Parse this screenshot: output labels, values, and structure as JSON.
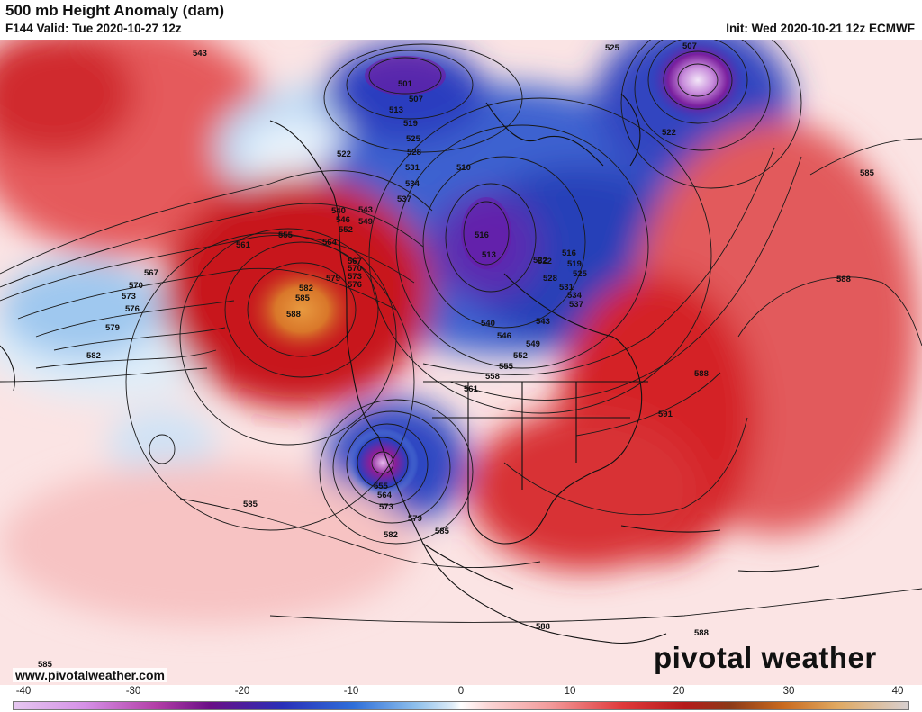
{
  "header": {
    "title": "500 mb Height Anomaly (dam)",
    "valid": "F144 Valid: Tue 2020-10-27 12z",
    "init": "Init: Wed 2020-10-21 12z ECMWF"
  },
  "footer": {
    "website": "www.pivotalweather.com",
    "brand": "pivotal weather"
  },
  "colorbar": {
    "ticks": [
      "-40",
      "-30",
      "-20",
      "-10",
      "0",
      "10",
      "20",
      "30",
      "40"
    ]
  },
  "contour_labels": [
    "543",
    "501",
    "507",
    "513",
    "519",
    "525",
    "525",
    "507",
    "522",
    "522",
    "522",
    "528",
    "531",
    "534",
    "537",
    "540",
    "543",
    "546",
    "549",
    "552",
    "555",
    "561",
    "564",
    "567",
    "570",
    "573",
    "576",
    "579",
    "582",
    "585",
    "588",
    "510",
    "516",
    "513",
    "516",
    "519",
    "522",
    "525",
    "528",
    "531",
    "534",
    "537",
    "540",
    "543",
    "546",
    "549",
    "552",
    "555",
    "558",
    "561",
    "567",
    "570",
    "573",
    "576",
    "579",
    "582",
    "555",
    "564",
    "573",
    "579",
    "582",
    "585",
    "585",
    "588",
    "588",
    "591",
    "588",
    "588",
    "585",
    "585"
  ],
  "colors": {
    "positive_anomaly": "#d8262b",
    "negative_anomaly": "#2a45c0",
    "strong_positive": "#e0822a",
    "strong_negative": "#8a1a9a",
    "contour": "#1a1a1a"
  }
}
